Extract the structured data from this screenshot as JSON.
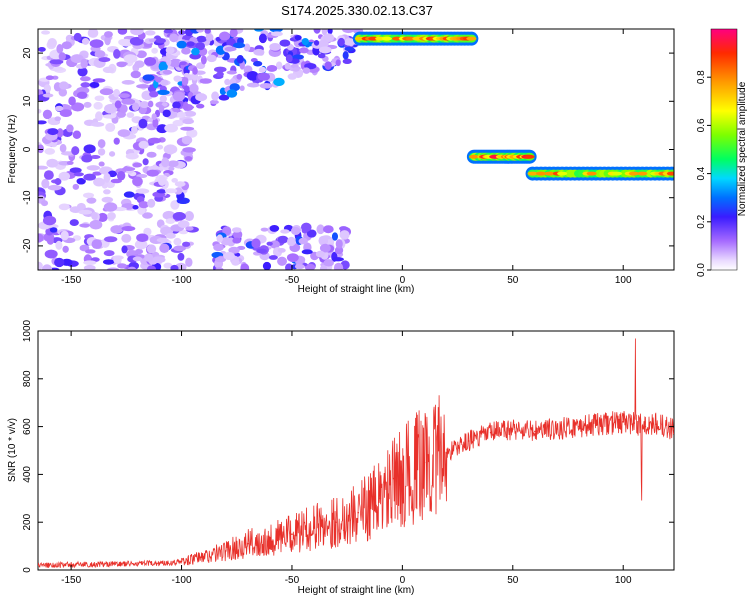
{
  "chart_data": [
    {
      "type": "heatmap",
      "title": "S174.2025.330.02.13.C37",
      "xlabel": "Height of straight line (km)",
      "ylabel": "Frequency (Hz)",
      "xlim": [
        -165,
        123
      ],
      "ylim": [
        -25,
        25
      ],
      "x_ticks": [
        "-150",
        "-100",
        "-50",
        "0",
        "50",
        "100"
      ],
      "x_tick_values": [
        -150,
        -100,
        -50,
        0,
        50,
        100
      ],
      "y_ticks": [
        "20",
        "10",
        "0",
        "-10",
        "-20"
      ],
      "y_tick_values": [
        20,
        10,
        0,
        -10,
        -20
      ],
      "colorbar": {
        "label": "Normalized spectral amplitude",
        "ticks": [
          "0.0",
          "0.2",
          "0.4",
          "0.6",
          "0.8"
        ],
        "tick_values": [
          0.0,
          0.2,
          0.4,
          0.6,
          0.8
        ],
        "range": [
          0,
          1
        ]
      },
      "features": [
        {
          "name": "main trace high",
          "x": [
            -20,
            32
          ],
          "freq": [
            22,
            24
          ],
          "peak": 0.9
        },
        {
          "name": "main trace zero",
          "x": [
            32,
            58
          ],
          "freq": [
            -2,
            -1
          ],
          "peak": 0.95
        },
        {
          "name": "main trace negative",
          "x": [
            58,
            123
          ],
          "freq": [
            -6,
            -4
          ],
          "peak": 0.9
        },
        {
          "name": "diffuse upper branch",
          "x": [
            -115,
            -20
          ],
          "freq": [
            5,
            25
          ],
          "peak": 0.35
        },
        {
          "name": "diffuse lower branch",
          "x": [
            -85,
            -25
          ],
          "freq": [
            -25,
            -16
          ],
          "peak": 0.3
        },
        {
          "name": "noise region",
          "x": [
            -165,
            -95
          ],
          "freq": [
            -25,
            25
          ],
          "peak": 0.15
        }
      ]
    },
    {
      "type": "line",
      "xlabel": "Height of straight line (km)",
      "ylabel": "SNR (10 * v/v)",
      "xlim": [
        -165,
        123
      ],
      "ylim": [
        0,
        1000
      ],
      "x_ticks": [
        "-150",
        "-100",
        "-50",
        "0",
        "50",
        "100"
      ],
      "x_tick_values": [
        -150,
        -100,
        -50,
        0,
        50,
        100
      ],
      "y_ticks": [
        "0",
        "200",
        "400",
        "600",
        "800",
        "1000"
      ],
      "y_tick_values": [
        0,
        200,
        400,
        600,
        800,
        1000
      ],
      "series": [
        {
          "color": "#e8302a",
          "x": [
            -165,
            -150,
            -130,
            -110,
            -100,
            -90,
            -80,
            -70,
            -60,
            -50,
            -40,
            -30,
            -20,
            -10,
            0,
            10,
            20,
            30,
            40,
            50,
            60,
            70,
            80,
            90,
            100,
            105,
            110,
            115,
            123
          ],
          "values": [
            20,
            22,
            25,
            28,
            35,
            55,
            80,
            110,
            130,
            150,
            180,
            200,
            240,
            300,
            390,
            450,
            490,
            540,
            575,
            590,
            580,
            590,
            600,
            610,
            620,
            615,
            600,
            610,
            590
          ]
        }
      ]
    }
  ]
}
